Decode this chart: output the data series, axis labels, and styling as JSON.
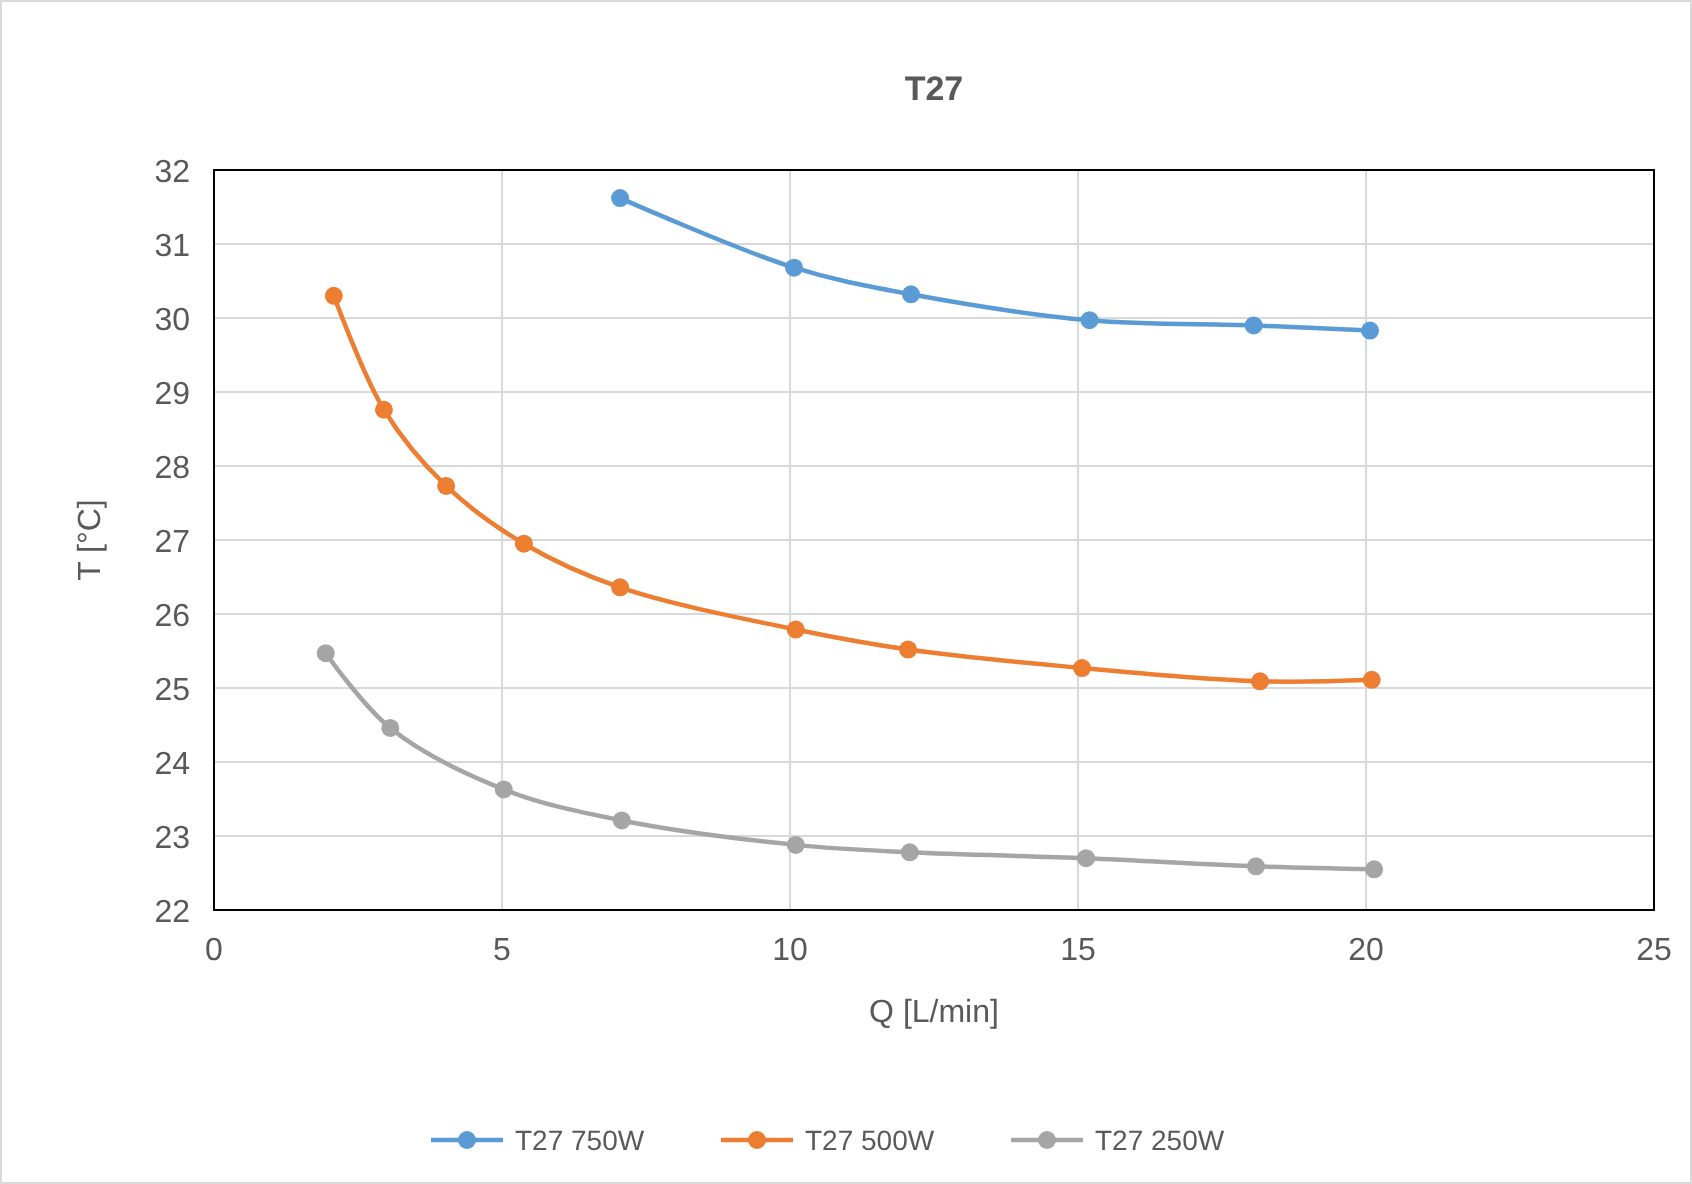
{
  "chart_data": {
    "type": "line",
    "title": "T27",
    "xlabel": "Q [L/min]",
    "ylabel": "T [°C]",
    "xlim": [
      0,
      25
    ],
    "xticks": [
      0,
      5,
      10,
      15,
      20,
      25
    ],
    "ylim": [
      22,
      32
    ],
    "yticks": [
      22,
      23,
      24,
      25,
      26,
      27,
      28,
      29,
      30,
      31,
      32
    ],
    "grid": true,
    "legend": "bottom",
    "marker": "circle",
    "line_style": "solid",
    "series": [
      {
        "name": "T27 750W",
        "color": "#5b9bd5",
        "x": [
          7.05,
          10.07,
          12.1,
          15.2,
          18.05,
          20.07
        ],
        "values": [
          31.62,
          30.68,
          30.32,
          29.97,
          29.9,
          29.83
        ]
      },
      {
        "name": "T27 500W",
        "color": "#ed7d31",
        "x": [
          2.08,
          2.95,
          4.03,
          5.38,
          7.05,
          10.1,
          12.05,
          15.07,
          18.16,
          20.1
        ],
        "values": [
          30.3,
          28.76,
          27.73,
          26.95,
          26.36,
          25.79,
          25.52,
          25.27,
          25.09,
          25.11
        ]
      },
      {
        "name": "T27 250W",
        "color": "#a5a5a5",
        "x": [
          1.94,
          3.06,
          5.03,
          7.08,
          10.1,
          12.08,
          15.14,
          18.09,
          20.14
        ],
        "values": [
          25.47,
          24.46,
          23.63,
          23.21,
          22.88,
          22.78,
          22.7,
          22.59,
          22.55
        ]
      }
    ]
  }
}
